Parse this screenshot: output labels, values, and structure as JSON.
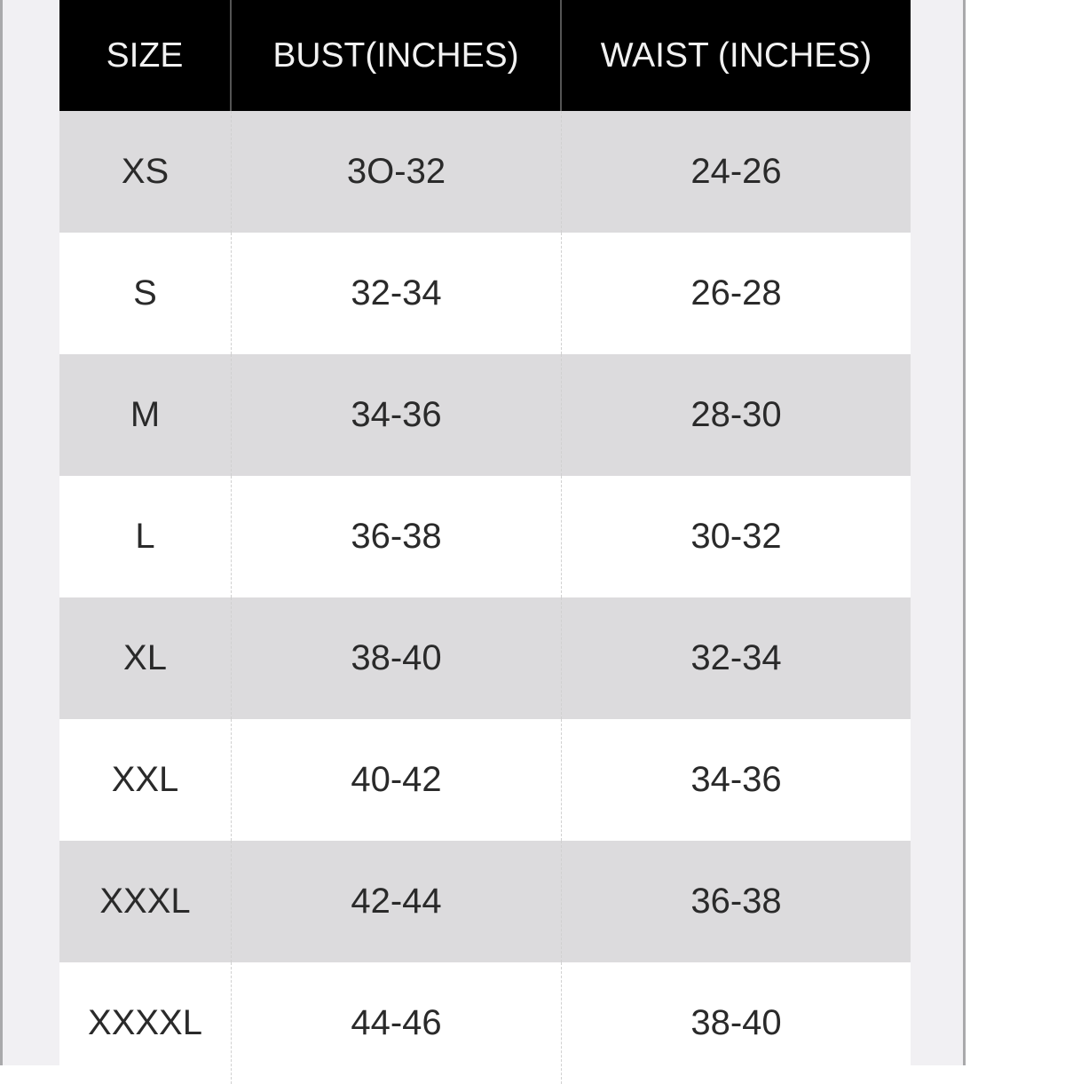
{
  "size_chart": {
    "headers": [
      "SIZE",
      "BUST(INCHES)",
      "WAIST (INCHES)"
    ],
    "rows": [
      [
        "XS",
        "3O-32",
        "24-26"
      ],
      [
        "S",
        "32-34",
        "26-28"
      ],
      [
        "M",
        "34-36",
        "28-30"
      ],
      [
        "L",
        "36-38",
        "30-32"
      ],
      [
        "XL",
        "38-40",
        "32-34"
      ],
      [
        "XXL",
        "40-42",
        "34-36"
      ],
      [
        "XXXL",
        "42-44",
        "36-38"
      ],
      [
        "XXXXL",
        "44-46",
        "38-40"
      ]
    ]
  },
  "colors": {
    "header_bg": "#000000",
    "stripe": "#dcdbdd",
    "panel": "#f1f0f3"
  }
}
